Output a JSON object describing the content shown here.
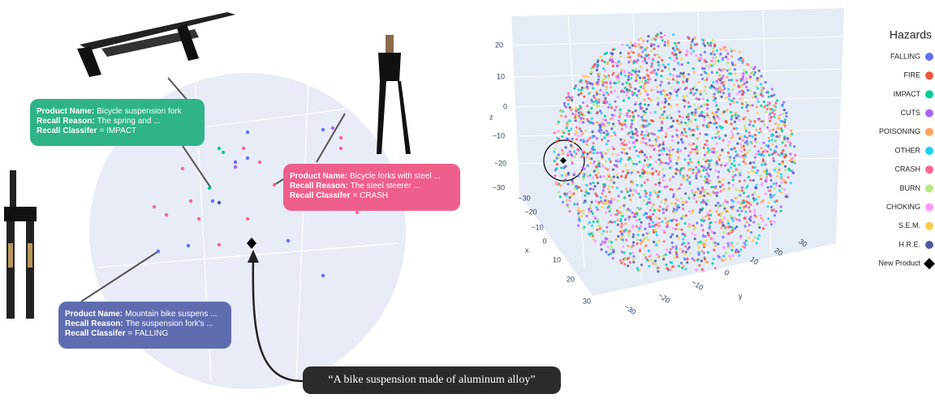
{
  "callouts": [
    {
      "product_name_label": "Product Name:",
      "product_name": "Bicycle suspension fork",
      "recall_reason_label": "Recall Reason:",
      "recall_reason": "The spring and ...",
      "classifier_label": "Recall Classifer",
      "classifier": "= IMPACT",
      "color": "#2fb389"
    },
    {
      "product_name_label": "Product Name:",
      "product_name": "Bicycle forks with steel ...",
      "recall_reason_label": "Recall Reason:",
      "recall_reason": "The steel steerer ...",
      "classifier_label": "Recall Classifer",
      "classifier": "= CRASH",
      "color": "#ef5f8c"
    },
    {
      "product_name_label": "Product Name:",
      "product_name": "Mountain bike suspens ...",
      "recall_reason_label": "Recall Reason:",
      "recall_reason": "The suspension fork's ...",
      "classifier_label": "Recall Classifer",
      "classifier": "= FALLING",
      "color": "#5f6db0"
    }
  ],
  "query": "“A bike suspension made of aluminum alloy”",
  "plot3d": {
    "x_label": "x",
    "y_label": "y",
    "z_label": "z",
    "z_ticks": [
      "20",
      "10",
      "0",
      "−10",
      "−20",
      "−30"
    ],
    "x_ticks": [
      "−30",
      "−20",
      "−10",
      "0",
      "10",
      "20",
      "30"
    ],
    "y_ticks": [
      "−30",
      "−20",
      "−10",
      "0",
      "10",
      "20",
      "30"
    ]
  },
  "legend": {
    "title": "Hazards",
    "items": [
      {
        "name": "FALLING",
        "color": "#636efa"
      },
      {
        "name": "FIRE",
        "color": "#ef553b"
      },
      {
        "name": "IMPACT",
        "color": "#00cc96"
      },
      {
        "name": "CUTS",
        "color": "#ab63fa"
      },
      {
        "name": "POISONING",
        "color": "#ffa15a"
      },
      {
        "name": "OTHER",
        "color": "#19d3f3"
      },
      {
        "name": "CRASH",
        "color": "#ff6692"
      },
      {
        "name": "BURN",
        "color": "#b6e880"
      },
      {
        "name": "CHOKING",
        "color": "#ff97ff"
      },
      {
        "name": "S.E.M.",
        "color": "#fecb52"
      },
      {
        "name": "H.R.E.",
        "color": "#4f5a9e"
      },
      {
        "name": "New Product",
        "color": "#000000"
      }
    ]
  }
}
